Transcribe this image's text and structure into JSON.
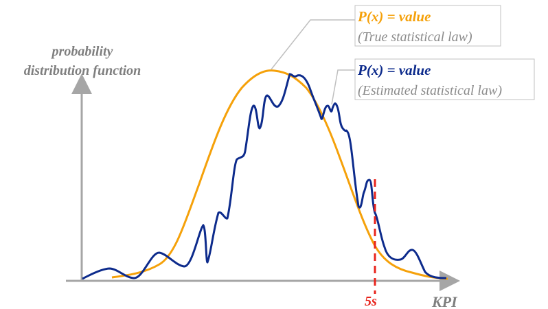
{
  "y_axis_label": {
    "line1": "probability",
    "line2": "distribution function"
  },
  "x_axis_label": "KPI",
  "threshold_label": "5s",
  "true_law": {
    "formula": "P(x) = value",
    "description": "(True statistical law)",
    "color": "#f5a10a"
  },
  "estimated_law": {
    "formula": "P(x) = value",
    "description": "(Estimated statistical law)",
    "color": "#0d2b8c"
  },
  "colors": {
    "axis": "#a6a6a6",
    "threshold": "#e8241c",
    "leader": "#bfbfbf",
    "label_box_border": "#c0c0c0",
    "description_text": "#8c8c8c"
  }
}
